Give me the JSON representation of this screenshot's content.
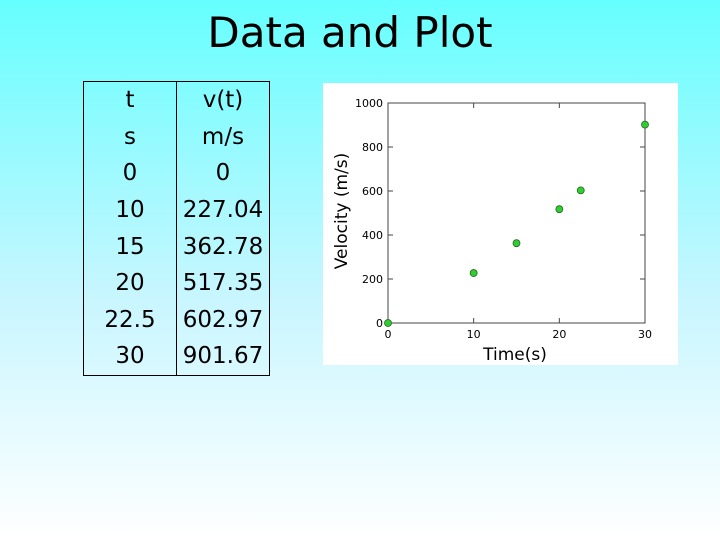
{
  "slide": {
    "title": "Data and Plot"
  },
  "table": {
    "header": [
      "t",
      "v(t)"
    ],
    "units": [
      "s",
      "m/s"
    ],
    "rows": [
      [
        "0",
        "0"
      ],
      [
        "10",
        "227.04"
      ],
      [
        "15",
        "362.78"
      ],
      [
        "20",
        "517.35"
      ],
      [
        "22.5",
        "602.97"
      ],
      [
        "30",
        "901.67"
      ]
    ]
  },
  "chart_data": {
    "type": "scatter",
    "title": "",
    "xlabel": "Time(s)",
    "ylabel": "Velocity (m/s)",
    "xlim": [
      0,
      30
    ],
    "ylim": [
      0,
      1000
    ],
    "xticks": [
      0,
      10,
      20,
      30
    ],
    "yticks": [
      0,
      200,
      400,
      600,
      800,
      1000
    ],
    "grid": false,
    "marker_color": "#33cc33",
    "x": [
      0,
      10,
      15,
      20,
      22.5,
      30
    ],
    "y": [
      0,
      227.04,
      362.78,
      517.35,
      602.97,
      901.67
    ]
  }
}
